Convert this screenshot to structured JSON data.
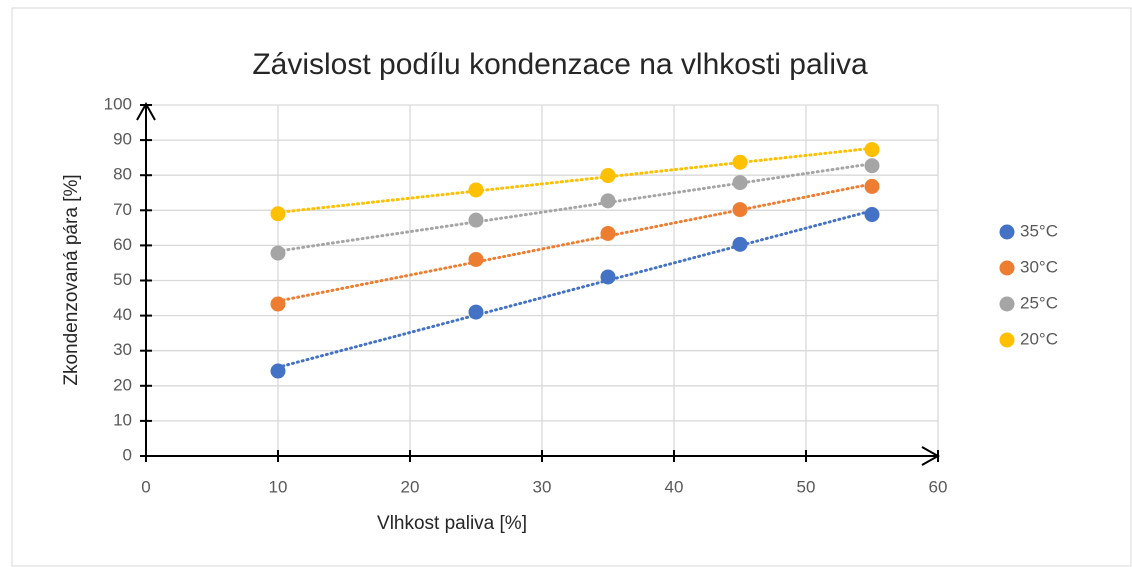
{
  "chart_data": {
    "type": "scatter",
    "title": "Závislost podílu kondenzace na vlhkosti paliva",
    "x_label": "Vlhkost paliva [%]",
    "y_label": "Zkondenzovaná pára [%]",
    "x": [
      10,
      25,
      35,
      45,
      55
    ],
    "series": [
      {
        "name": "35°C",
        "color": "#4472c4",
        "values": [
          24.2,
          41,
          51,
          60.3,
          68.8
        ]
      },
      {
        "name": "30°C",
        "color": "#ed7d31",
        "values": [
          43.3,
          56,
          63.4,
          70.2,
          76.8
        ]
      },
      {
        "name": "25°C",
        "color": "#a5a5a5",
        "values": [
          57.8,
          67.2,
          72.7,
          77.9,
          82.7
        ]
      },
      {
        "name": "20°C",
        "color": "#ffc000",
        "values": [
          69,
          75.8,
          79.9,
          83.7,
          87.3
        ]
      }
    ],
    "xlim": [
      0,
      60
    ],
    "xticks": [
      0,
      10,
      20,
      30,
      40,
      50,
      60
    ],
    "ylim": [
      0,
      100
    ],
    "yticks": [
      0,
      10,
      20,
      30,
      40,
      50,
      60,
      70,
      80,
      90,
      100
    ],
    "grid": true,
    "trendline": "linear",
    "legend": "right"
  }
}
